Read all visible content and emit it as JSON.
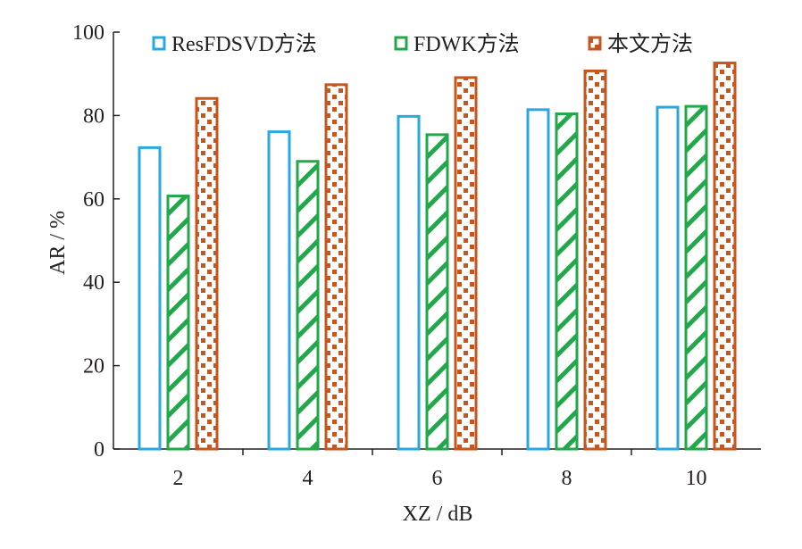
{
  "chart_data": {
    "type": "bar",
    "title": "",
    "xlabel": "XZ / dB",
    "ylabel": "AR / %",
    "categories": [
      "2",
      "4",
      "6",
      "8",
      "10"
    ],
    "ylim": [
      0,
      100
    ],
    "yticks": [
      "0",
      "20",
      "40",
      "60",
      "80",
      "100"
    ],
    "legend_position": "top",
    "grid": false,
    "series": [
      {
        "name": "ResFDSVD方法",
        "color": "#29a8e0",
        "pattern": "hollow",
        "values": [
          72.3,
          76.1,
          79.8,
          81.4,
          82.0
        ]
      },
      {
        "name": "FDWK方法",
        "color": "#22a84a",
        "pattern": "diagonal",
        "values": [
          60.7,
          69.0,
          75.4,
          80.4,
          82.2
        ]
      },
      {
        "name": "本文方法",
        "color": "#c4561e",
        "pattern": "checker",
        "values": [
          84.1,
          87.4,
          89.1,
          90.7,
          92.6
        ]
      }
    ]
  }
}
